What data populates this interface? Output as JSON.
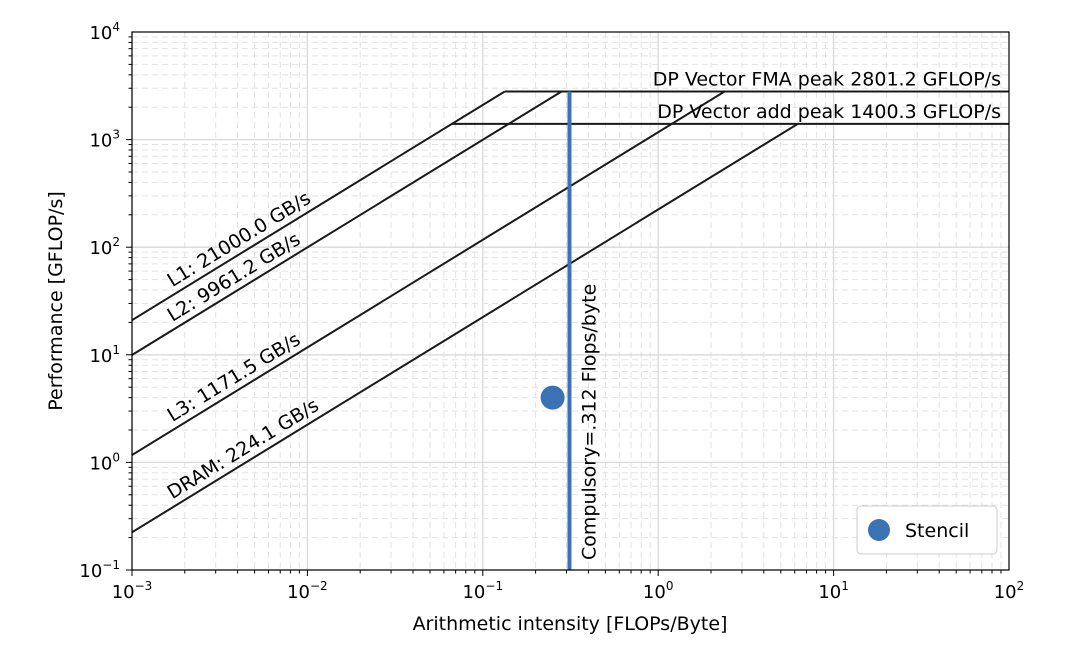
{
  "chart_data": {
    "type": "scatter",
    "xlabel": "Arithmetic intensity [FLOPs/Byte]",
    "ylabel": "Performance [GFLOP/s]",
    "xscale": "log",
    "yscale": "log",
    "xlim": [
      0.001,
      100
    ],
    "ylim": [
      0.1,
      10000
    ],
    "grid": true,
    "x_ticks": [
      {
        "value": 0.001,
        "base": "10",
        "exp": "−3"
      },
      {
        "value": 0.01,
        "base": "10",
        "exp": "−2"
      },
      {
        "value": 0.1,
        "base": "10",
        "exp": "−1"
      },
      {
        "value": 1,
        "base": "10",
        "exp": "0"
      },
      {
        "value": 10,
        "base": "10",
        "exp": "1"
      },
      {
        "value": 100,
        "base": "10",
        "exp": "2"
      }
    ],
    "y_ticks": [
      {
        "value": 0.1,
        "base": "10",
        "exp": "−1"
      },
      {
        "value": 1,
        "base": "10",
        "exp": "0"
      },
      {
        "value": 10,
        "base": "10",
        "exp": "1"
      },
      {
        "value": 100,
        "base": "10",
        "exp": "2"
      },
      {
        "value": 1000,
        "base": "10",
        "exp": "3"
      },
      {
        "value": 10000,
        "base": "10",
        "exp": "4"
      }
    ],
    "compute_ceilings": [
      {
        "label": "DP Vector FMA peak 2801.2 GFLOP/s",
        "gflops": 2801.2
      },
      {
        "label": "DP Vector add peak 1400.3 GFLOP/s",
        "gflops": 1400.3
      }
    ],
    "bandwidth_ceilings": [
      {
        "label": "L1: 21000.0 GB/s",
        "gbps": 21000.0,
        "peak": 2801.2
      },
      {
        "label": "L2: 9961.2 GB/s",
        "gbps": 9961.2,
        "peak": 2801.2
      },
      {
        "label": "L3: 1171.5 GB/s",
        "gbps": 1171.5,
        "peak": 2801.2
      },
      {
        "label": "DRAM: 224.1 GB/s",
        "gbps": 224.1,
        "peak": 1400.3
      }
    ],
    "vertical_lines": [
      {
        "label": "Compulsory=.312 Flops/byte",
        "x": 0.312,
        "color": "#3a72b4"
      }
    ],
    "series": [
      {
        "name": "Stencil",
        "color": "#3a72b4",
        "points": [
          [
            0.25,
            4.0
          ]
        ]
      }
    ],
    "legend": {
      "placement": "bottom-right",
      "entries": [
        "Stencil"
      ]
    },
    "colors": {
      "roofline": "#1a1a1a",
      "accent": "#3a72b4",
      "grid_major": "#d9d9d9",
      "grid_minor": "#e2e2e2"
    }
  }
}
